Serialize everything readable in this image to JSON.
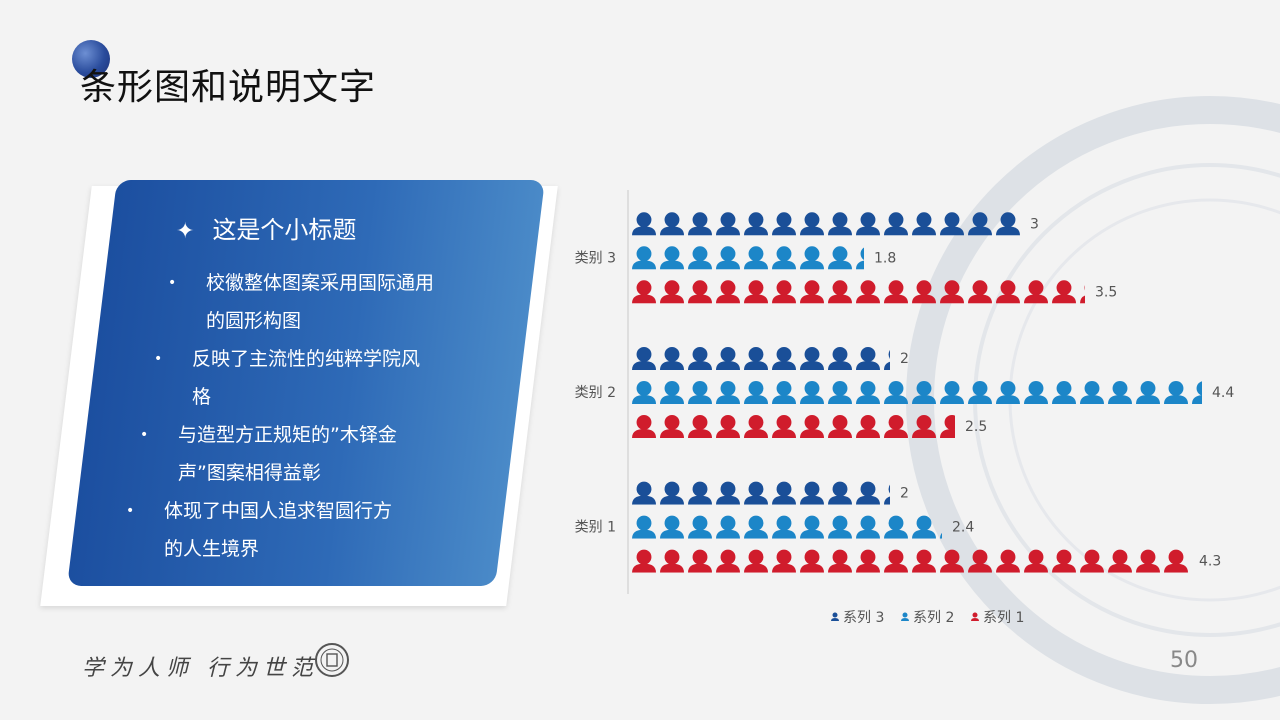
{
  "slide": {
    "title": "条形图和说明文字",
    "page_number": "50",
    "motto": "学为人师 行为世范"
  },
  "panel": {
    "subtitle": "这是个小标题",
    "bullets": [
      [
        "校徽整体图案采用国际通用",
        "的圆形构图"
      ],
      [
        "反映了主流性的纯粹学院风",
        "格"
      ],
      [
        "与造型方正规矩的”木铎金",
        "声”图案相得益彰"
      ],
      [
        "体现了中国人追求智圆行方",
        "的人生境界"
      ]
    ]
  },
  "colors": {
    "series3": "#1a4f98",
    "series2": "#1c86c8",
    "series1": "#d01c2c",
    "panel_start": "#1c4fa0",
    "panel_end": "#4a8ac8"
  },
  "chart_data": {
    "type": "bar",
    "orientation": "horizontal",
    "categories": [
      "类别 1",
      "类别 2",
      "类别 3"
    ],
    "series": [
      {
        "name": "系列 1",
        "values": [
          4.3,
          2.5,
          3.5
        ]
      },
      {
        "name": "系列 2",
        "values": [
          2.4,
          4.4,
          1.8
        ]
      },
      {
        "name": "系列 3",
        "values": [
          2,
          2,
          3
        ]
      }
    ],
    "xlim": [
      0,
      5
    ],
    "legend_position": "bottom",
    "marker_icon": "person-icon"
  }
}
